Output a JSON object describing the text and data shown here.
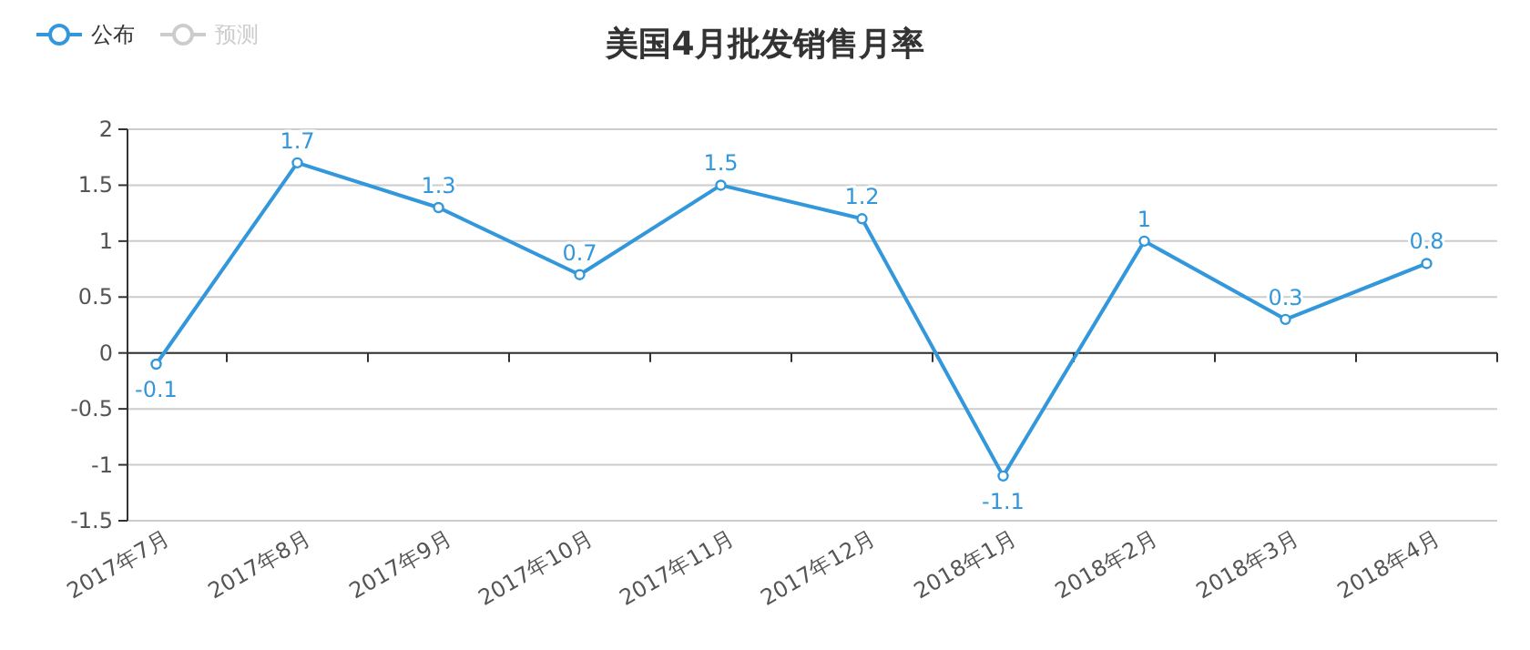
{
  "chart_data": {
    "type": "line",
    "title": "美国4月批发销售月率",
    "categories": [
      "2017年7月",
      "2017年8月",
      "2017年9月",
      "2017年10月",
      "2017年11月",
      "2017年12月",
      "2018年1月",
      "2018年2月",
      "2018年3月",
      "2018年4月"
    ],
    "series": [
      {
        "name": "公布",
        "color": "#3398db",
        "values": [
          -0.1,
          1.7,
          1.3,
          0.7,
          1.5,
          1.2,
          -1.1,
          1,
          0.3,
          0.8
        ]
      },
      {
        "name": "预测",
        "color": "#cccccc",
        "values": [
          null,
          null,
          null,
          null,
          null,
          null,
          null,
          null,
          null,
          null
        ]
      }
    ],
    "ylim": [
      -1.5,
      2
    ],
    "yticks": [
      -1.5,
      -1,
      -0.5,
      0,
      0.5,
      1,
      1.5,
      2
    ],
    "grid": "y",
    "legend": "top left",
    "marker": "circle",
    "line_style": "solid",
    "data_labels": true
  }
}
